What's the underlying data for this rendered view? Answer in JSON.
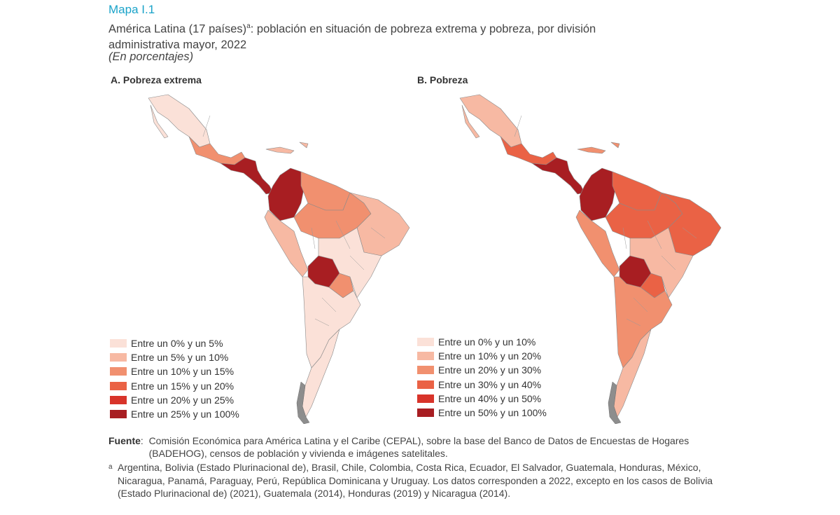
{
  "figure": {
    "label": "Mapa I.1",
    "subtitle_main": "América Latina (17 países)",
    "subtitle_mark": "a",
    "subtitle_rest": ": población en situación de pobreza extrema y pobreza, por división administrativa mayor, 2022",
    "units": "(En porcentajes)"
  },
  "panels": [
    {
      "title": "A. Pobreza extrema",
      "legend": [
        {
          "label": "Entre un 0% y un 5%",
          "color": "#fbe1d8"
        },
        {
          "label": "Entre un 5% y un 10%",
          "color": "#f7b9a3"
        },
        {
          "label": "Entre un 10% y un 15%",
          "color": "#f1906f"
        },
        {
          "label": "Entre un 15% y un 20%",
          "color": "#ea6245"
        },
        {
          "label": "Entre un 20% y un 25%",
          "color": "#d8342a"
        },
        {
          "label": "Entre un 25% y un 100%",
          "color": "#a81e22"
        }
      ],
      "region_classes": {
        "mexico_north": 0,
        "mexico_south": 2,
        "central_america": 5,
        "caribbean": 1,
        "colombia": 5,
        "venezuela_region": 2,
        "ecuador_peru_west": 1,
        "brazil_north": 2,
        "brazil_northeast": 1,
        "brazil_south": 0,
        "bolivia": 5,
        "paraguay": 2,
        "southern_cone": 0,
        "patagonia": 0
      }
    },
    {
      "title": "B. Pobreza",
      "legend": [
        {
          "label": "Entre un 0% y un 10%",
          "color": "#fbe1d8"
        },
        {
          "label": "Entre un 10% y un 20%",
          "color": "#f7b9a3"
        },
        {
          "label": "Entre un 20% y un 30%",
          "color": "#f1906f"
        },
        {
          "label": "Entre un 30% y un 40%",
          "color": "#ea6245"
        },
        {
          "label": "Entre un 40% y un 50%",
          "color": "#d8342a"
        },
        {
          "label": "Entre un 50% y un 100%",
          "color": "#a81e22"
        }
      ],
      "region_classes": {
        "mexico_north": 1,
        "mexico_south": 3,
        "central_america": 5,
        "caribbean": 2,
        "colombia": 5,
        "venezuela_region": 3,
        "ecuador_peru_west": 2,
        "brazil_north": 3,
        "brazil_northeast": 3,
        "brazil_south": 1,
        "bolivia": 5,
        "paraguay": 3,
        "southern_cone": 2,
        "patagonia": 1
      }
    }
  ],
  "source": {
    "label": "Fuente",
    "text": "Comisión Económica para América Latina y el Caribe (CEPAL), sobre la base del Banco de Datos de Encuestas de Hogares (BADEHOG), censos de población y vivienda e imágenes satelitales.",
    "note_mark": "a",
    "note_text": "Argentina, Bolivia (Estado Plurinacional de), Brasil, Chile, Colombia, Costa Rica, Ecuador, El Salvador, Guatemala, Honduras, México, Nicaragua, Panamá, Paraguay, Perú, República Dominicana y Uruguay. Los datos corresponden a 2022, excepto en los casos de Bolivia (Estado Plurinacional de) (2021), Guatemala (2014), Honduras (2019) y Nicaragua (2014)."
  }
}
